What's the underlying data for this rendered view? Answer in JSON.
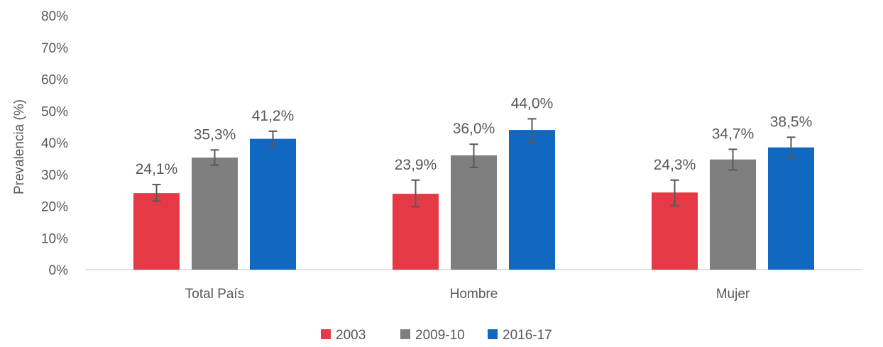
{
  "chart_data": {
    "type": "bar",
    "ylabel": "Prevalencia (%)",
    "ylim": [
      0,
      80
    ],
    "yticks": [
      "0%",
      "10%",
      "20%",
      "30%",
      "40%",
      "50%",
      "60%",
      "70%",
      "80%"
    ],
    "ytick_values": [
      0,
      10,
      20,
      30,
      40,
      50,
      60,
      70,
      80
    ],
    "categories": [
      "Total País",
      "Hombre",
      "Mujer"
    ],
    "series": [
      {
        "name": "2003",
        "color": "#e63946",
        "values": [
          24.1,
          23.9,
          24.3
        ],
        "labels": [
          "24,1%",
          "23,9%",
          "24,3%"
        ],
        "err_low": [
          21.6,
          19.8,
          20.2
        ],
        "err_high": [
          26.8,
          28.2,
          28.2
        ]
      },
      {
        "name": "2009-10",
        "color": "#7f7f7f",
        "values": [
          35.3,
          36.0,
          34.7
        ],
        "labels": [
          "35,3%",
          "36,0%",
          "34,7%"
        ],
        "err_low": [
          32.9,
          32.2,
          31.4
        ],
        "err_high": [
          37.7,
          39.5,
          37.9
        ]
      },
      {
        "name": "2016-17",
        "color": "#1168c0",
        "values": [
          41.2,
          44.0,
          38.5
        ],
        "labels": [
          "41,2%",
          "44,0%",
          "38,5%"
        ],
        "err_low": [
          38.6,
          40.2,
          35.2
        ],
        "err_high": [
          43.6,
          47.5,
          41.7
        ]
      }
    ],
    "grid": false,
    "legend_position": "bottom"
  }
}
